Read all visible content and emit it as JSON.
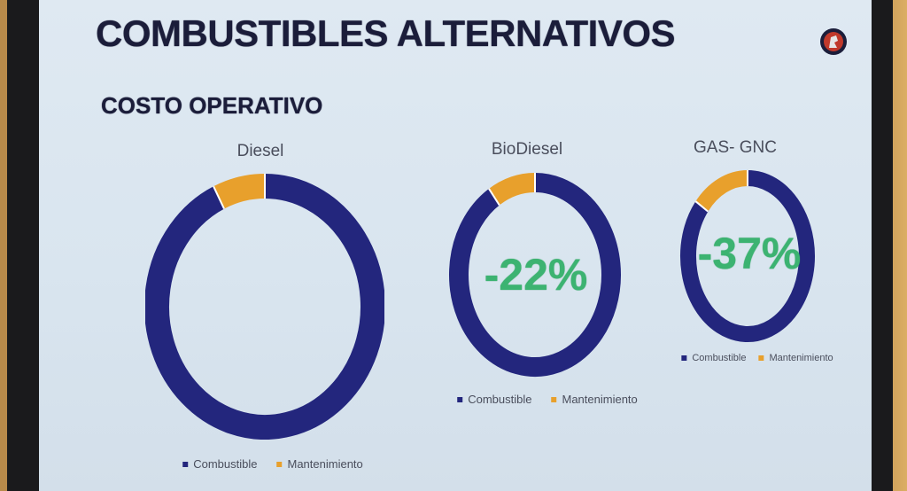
{
  "slide": {
    "title": "COMBUSTIBLES ALTERNATIVOS",
    "subtitle": "COSTO OPERATIVO"
  },
  "colors": {
    "combustible": "#23267d",
    "mantenimiento": "#e8a02c",
    "percent": "#3cb371"
  },
  "logo_icon": "griffin-emblem-icon",
  "chart_data": [
    {
      "type": "pie",
      "title": "Diesel",
      "categories": [
        "Combustible",
        "Mantenimiento"
      ],
      "values": [
        93,
        7
      ],
      "annotation": "",
      "legend": [
        "Combustible",
        "Mantenimiento"
      ],
      "legend_position": "bottom"
    },
    {
      "type": "pie",
      "title": "BioDiesel",
      "categories": [
        "Combustible",
        "Mantenimiento"
      ],
      "values": [
        91,
        9
      ],
      "annotation": "-22%",
      "legend": [
        "Combustible",
        "Mantenimiento"
      ],
      "legend_position": "bottom"
    },
    {
      "type": "pie",
      "title": "GAS- GNC",
      "categories": [
        "Combustible",
        "Mantenimiento"
      ],
      "values": [
        86,
        14
      ],
      "annotation": "-37%",
      "legend": [
        "Combustible",
        "Mantenimiento"
      ],
      "legend_position": "bottom"
    }
  ]
}
